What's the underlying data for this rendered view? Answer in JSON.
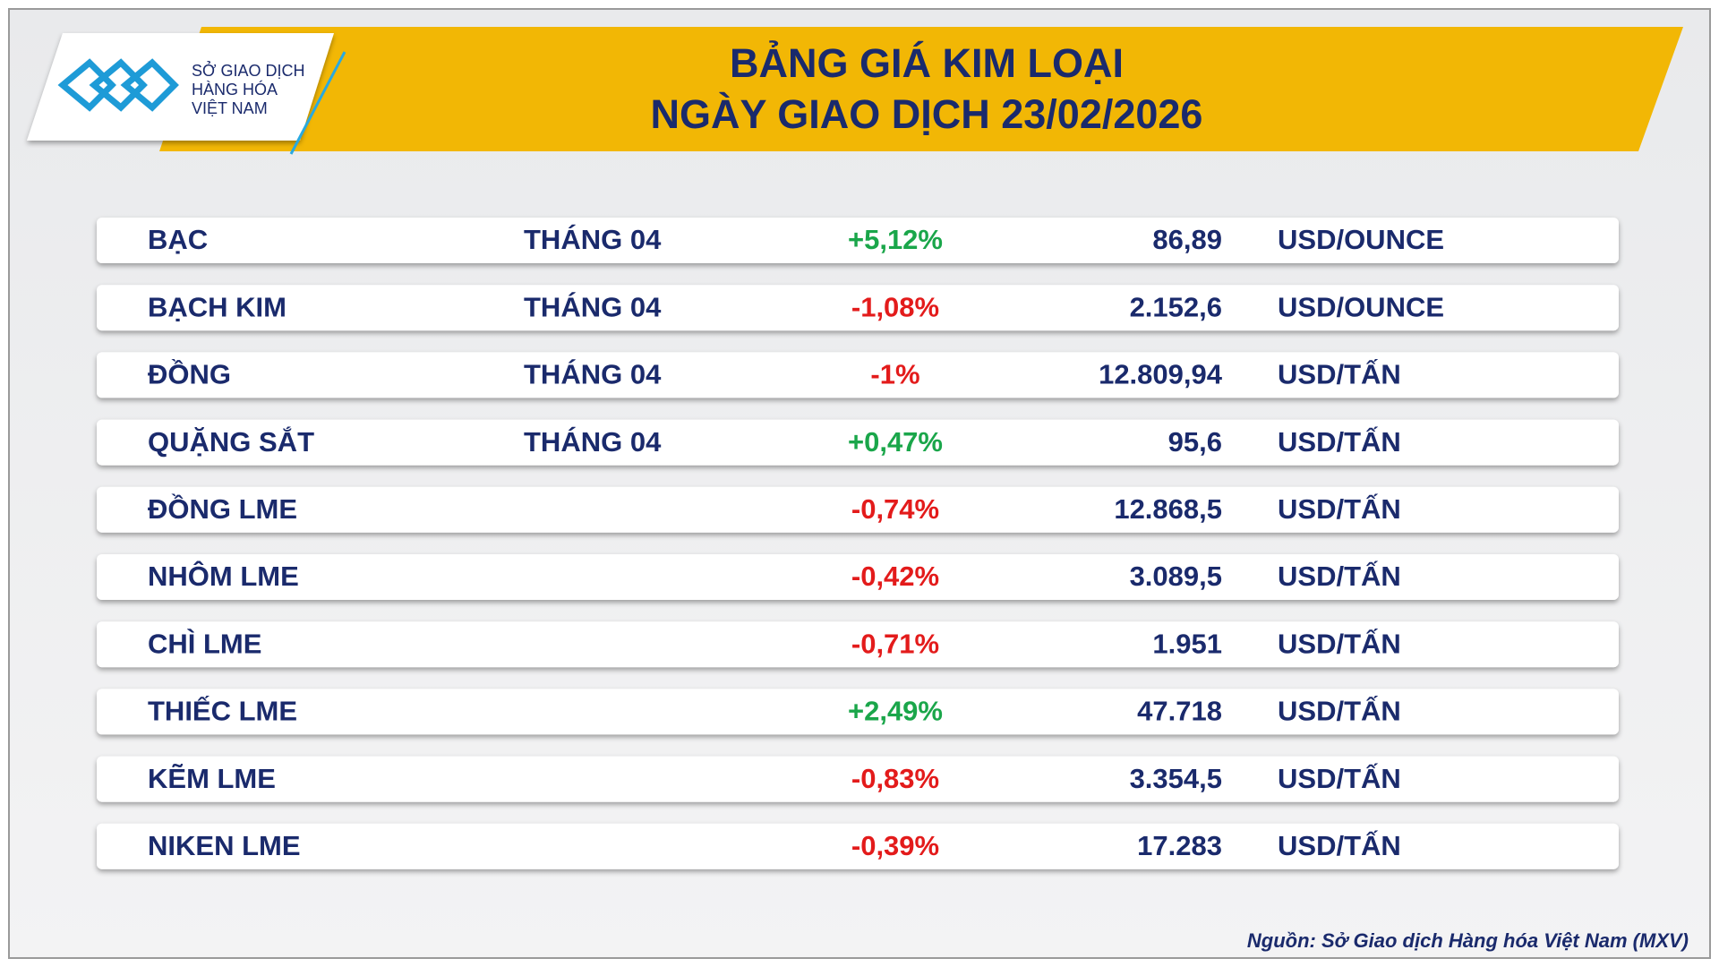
{
  "header": {
    "logo_lines": [
      "SỞ GIAO DỊCH",
      "HÀNG HÓA",
      "VIỆT NAM"
    ],
    "title_lines": [
      "BẢNG GIÁ KIM LOẠI",
      "NGÀY GIAO DỊCH 23/02/2026"
    ]
  },
  "table": {
    "rows": [
      {
        "name": "BẠC",
        "month": "THÁNG 04",
        "change": "+5,12%",
        "price": "86,89",
        "unit": "USD/OUNCE"
      },
      {
        "name": "BẠCH KIM",
        "month": "THÁNG 04",
        "change": "-1,08%",
        "price": "2.152,6",
        "unit": "USD/OUNCE"
      },
      {
        "name": "ĐỒNG",
        "month": "THÁNG 04",
        "change": "-1%",
        "price": "12.809,94",
        "unit": "USD/TẤN"
      },
      {
        "name": "QUẶNG SẮT",
        "month": "THÁNG 04",
        "change": "+0,47%",
        "price": "95,6",
        "unit": "USD/TẤN"
      },
      {
        "name": "ĐỒNG LME",
        "change": "-0,74%",
        "price": "12.868,5",
        "unit": "USD/TẤN"
      },
      {
        "name": "NHÔM LME",
        "change": "-0,42%",
        "price": "3.089,5",
        "unit": "USD/TẤN"
      },
      {
        "name": "CHÌ LME",
        "change": "-0,71%",
        "price": "1.951",
        "unit": "USD/TẤN"
      },
      {
        "name": "THIẾC LME",
        "change": "+2,49%",
        "price": "47.718",
        "unit": "USD/TẤN"
      },
      {
        "name": "KẼM LME",
        "change": "-0,83%",
        "price": "3.354,5",
        "unit": "USD/TẤN"
      },
      {
        "name": "NIKEN LME",
        "change": "-0,39%",
        "price": "17.283",
        "unit": "USD/TẤN"
      }
    ]
  },
  "footer": {
    "source": "Nguồn: Sở Giao dịch Hàng hóa Việt Nam (MXV)"
  }
}
